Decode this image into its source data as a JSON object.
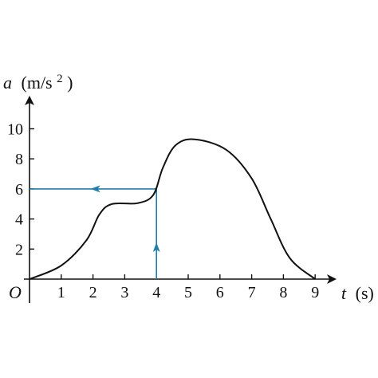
{
  "chart_data": {
    "type": "line",
    "xlabel": {
      "symbol": "t",
      "unit": "(s)"
    },
    "ylabel": {
      "symbol": "a",
      "unit_open": "(m/s",
      "unit_exp": "2",
      "unit_close": ")"
    },
    "origin_label": "O",
    "xlim": [
      0,
      9
    ],
    "ylim": [
      0,
      10
    ],
    "x_ticks": [
      1,
      2,
      3,
      4,
      5,
      6,
      7,
      8,
      9
    ],
    "x_tick_labels": [
      "1",
      "2",
      "3",
      "4",
      "5",
      "6",
      "7",
      "8",
      "9"
    ],
    "y_ticks": [
      2,
      4,
      6,
      8,
      10
    ],
    "y_tick_labels": [
      "2",
      "4",
      "6",
      "8",
      "10"
    ],
    "grid": false,
    "series": [
      {
        "points": [
          [
            0,
            0
          ],
          [
            1,
            0.9
          ],
          [
            1.8,
            2.6
          ],
          [
            2.2,
            4.3
          ],
          [
            2.6,
            5.0
          ],
          [
            3.4,
            5.05
          ],
          [
            3.9,
            5.6
          ],
          [
            4.2,
            7.4
          ],
          [
            4.6,
            8.9
          ],
          [
            5.2,
            9.3
          ],
          [
            6.2,
            8.6
          ],
          [
            7.0,
            6.7
          ],
          [
            7.6,
            4.0
          ],
          [
            8.2,
            1.4
          ],
          [
            9,
            0
          ]
        ]
      }
    ],
    "annotation": {
      "type": "read-off",
      "x": 4,
      "y": 6,
      "color": "#1f7fa8"
    }
  }
}
